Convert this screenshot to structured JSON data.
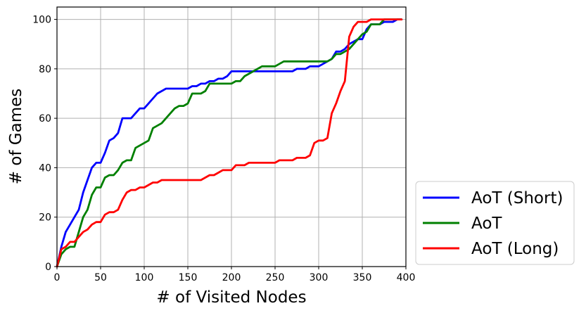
{
  "chart_data": {
    "type": "line",
    "title": "",
    "xlabel": "# of Visited Nodes",
    "ylabel": "# of Games",
    "xlim": [
      0,
      400
    ],
    "ylim": [
      0,
      105
    ],
    "xticks": [
      0,
      50,
      100,
      150,
      200,
      250,
      300,
      350,
      400
    ],
    "yticks": [
      0,
      20,
      40,
      60,
      80,
      100
    ],
    "grid": true,
    "legend_position": "outside-bottom-right",
    "series": [
      {
        "name": "AoT (Short)",
        "color": "#0000ff",
        "points": [
          [
            0,
            0
          ],
          [
            5,
            8
          ],
          [
            10,
            14
          ],
          [
            15,
            17
          ],
          [
            20,
            20
          ],
          [
            25,
            23
          ],
          [
            30,
            30
          ],
          [
            35,
            35
          ],
          [
            40,
            40
          ],
          [
            45,
            42
          ],
          [
            50,
            42
          ],
          [
            55,
            46
          ],
          [
            60,
            51
          ],
          [
            65,
            52
          ],
          [
            70,
            54
          ],
          [
            75,
            60
          ],
          [
            80,
            60
          ],
          [
            85,
            60
          ],
          [
            90,
            62
          ],
          [
            95,
            64
          ],
          [
            100,
            64
          ],
          [
            105,
            66
          ],
          [
            110,
            68
          ],
          [
            115,
            70
          ],
          [
            120,
            71
          ],
          [
            125,
            72
          ],
          [
            130,
            72
          ],
          [
            135,
            72
          ],
          [
            140,
            72
          ],
          [
            145,
            72
          ],
          [
            150,
            72
          ],
          [
            155,
            73
          ],
          [
            160,
            73
          ],
          [
            165,
            74
          ],
          [
            170,
            74
          ],
          [
            175,
            75
          ],
          [
            180,
            75
          ],
          [
            185,
            76
          ],
          [
            190,
            76
          ],
          [
            195,
            77
          ],
          [
            200,
            79
          ],
          [
            205,
            79
          ],
          [
            210,
            79
          ],
          [
            220,
            79
          ],
          [
            230,
            79
          ],
          [
            240,
            79
          ],
          [
            250,
            79
          ],
          [
            260,
            79
          ],
          [
            270,
            79
          ],
          [
            275,
            80
          ],
          [
            280,
            80
          ],
          [
            285,
            80
          ],
          [
            290,
            81
          ],
          [
            295,
            81
          ],
          [
            300,
            81
          ],
          [
            305,
            82
          ],
          [
            310,
            83
          ],
          [
            315,
            84
          ],
          [
            320,
            87
          ],
          [
            325,
            87
          ],
          [
            330,
            88
          ],
          [
            335,
            90
          ],
          [
            340,
            91
          ],
          [
            345,
            92
          ],
          [
            350,
            92
          ],
          [
            355,
            96
          ],
          [
            360,
            98
          ],
          [
            365,
            98
          ],
          [
            370,
            98
          ],
          [
            375,
            99
          ],
          [
            380,
            99
          ],
          [
            385,
            99
          ],
          [
            390,
            100
          ],
          [
            395,
            100
          ]
        ]
      },
      {
        "name": "AoT",
        "color": "#008000",
        "points": [
          [
            0,
            0
          ],
          [
            5,
            5
          ],
          [
            10,
            7
          ],
          [
            15,
            8
          ],
          [
            20,
            8
          ],
          [
            25,
            14
          ],
          [
            30,
            20
          ],
          [
            35,
            23
          ],
          [
            40,
            29
          ],
          [
            45,
            32
          ],
          [
            50,
            32
          ],
          [
            55,
            36
          ],
          [
            60,
            37
          ],
          [
            65,
            37
          ],
          [
            70,
            39
          ],
          [
            75,
            42
          ],
          [
            80,
            43
          ],
          [
            85,
            43
          ],
          [
            90,
            48
          ],
          [
            95,
            49
          ],
          [
            100,
            50
          ],
          [
            105,
            51
          ],
          [
            110,
            56
          ],
          [
            115,
            57
          ],
          [
            120,
            58
          ],
          [
            125,
            60
          ],
          [
            130,
            62
          ],
          [
            135,
            64
          ],
          [
            140,
            65
          ],
          [
            145,
            65
          ],
          [
            150,
            66
          ],
          [
            155,
            70
          ],
          [
            160,
            70
          ],
          [
            165,
            70
          ],
          [
            170,
            71
          ],
          [
            175,
            74
          ],
          [
            180,
            74
          ],
          [
            185,
            74
          ],
          [
            190,
            74
          ],
          [
            195,
            74
          ],
          [
            200,
            74
          ],
          [
            205,
            75
          ],
          [
            210,
            75
          ],
          [
            215,
            77
          ],
          [
            220,
            78
          ],
          [
            225,
            79
          ],
          [
            230,
            80
          ],
          [
            235,
            81
          ],
          [
            240,
            81
          ],
          [
            245,
            81
          ],
          [
            250,
            81
          ],
          [
            255,
            82
          ],
          [
            260,
            83
          ],
          [
            270,
            83
          ],
          [
            280,
            83
          ],
          [
            290,
            83
          ],
          [
            300,
            83
          ],
          [
            310,
            83
          ],
          [
            315,
            84
          ],
          [
            320,
            86
          ],
          [
            325,
            86
          ],
          [
            330,
            87
          ],
          [
            335,
            88
          ],
          [
            340,
            90
          ],
          [
            345,
            92
          ],
          [
            350,
            94
          ],
          [
            355,
            95
          ],
          [
            360,
            98
          ],
          [
            365,
            98
          ],
          [
            370,
            98
          ],
          [
            375,
            100
          ],
          [
            380,
            100
          ],
          [
            385,
            100
          ],
          [
            390,
            100
          ],
          [
            395,
            100
          ]
        ]
      },
      {
        "name": "AoT (Long)",
        "color": "#ff0000",
        "points": [
          [
            0,
            0
          ],
          [
            5,
            7
          ],
          [
            10,
            8
          ],
          [
            15,
            10
          ],
          [
            20,
            10
          ],
          [
            25,
            12
          ],
          [
            30,
            14
          ],
          [
            35,
            15
          ],
          [
            40,
            17
          ],
          [
            45,
            18
          ],
          [
            50,
            18
          ],
          [
            55,
            21
          ],
          [
            60,
            22
          ],
          [
            65,
            22
          ],
          [
            70,
            23
          ],
          [
            75,
            27
          ],
          [
            80,
            30
          ],
          [
            85,
            31
          ],
          [
            90,
            31
          ],
          [
            95,
            32
          ],
          [
            100,
            32
          ],
          [
            105,
            33
          ],
          [
            110,
            34
          ],
          [
            115,
            34
          ],
          [
            120,
            35
          ],
          [
            125,
            35
          ],
          [
            130,
            35
          ],
          [
            140,
            35
          ],
          [
            150,
            35
          ],
          [
            160,
            35
          ],
          [
            165,
            35
          ],
          [
            170,
            36
          ],
          [
            175,
            37
          ],
          [
            180,
            37
          ],
          [
            185,
            38
          ],
          [
            190,
            39
          ],
          [
            195,
            39
          ],
          [
            200,
            39
          ],
          [
            205,
            41
          ],
          [
            210,
            41
          ],
          [
            215,
            41
          ],
          [
            220,
            42
          ],
          [
            225,
            42
          ],
          [
            230,
            42
          ],
          [
            240,
            42
          ],
          [
            250,
            42
          ],
          [
            255,
            43
          ],
          [
            260,
            43
          ],
          [
            265,
            43
          ],
          [
            270,
            43
          ],
          [
            275,
            44
          ],
          [
            280,
            44
          ],
          [
            285,
            44
          ],
          [
            290,
            45
          ],
          [
            295,
            50
          ],
          [
            300,
            51
          ],
          [
            305,
            51
          ],
          [
            310,
            52
          ],
          [
            315,
            62
          ],
          [
            320,
            66
          ],
          [
            325,
            71
          ],
          [
            330,
            75
          ],
          [
            335,
            93
          ],
          [
            340,
            97
          ],
          [
            345,
            99
          ],
          [
            350,
            99
          ],
          [
            355,
            99
          ],
          [
            360,
            100
          ],
          [
            365,
            100
          ],
          [
            370,
            100
          ],
          [
            380,
            100
          ],
          [
            390,
            100
          ],
          [
            395,
            100
          ]
        ]
      }
    ]
  }
}
